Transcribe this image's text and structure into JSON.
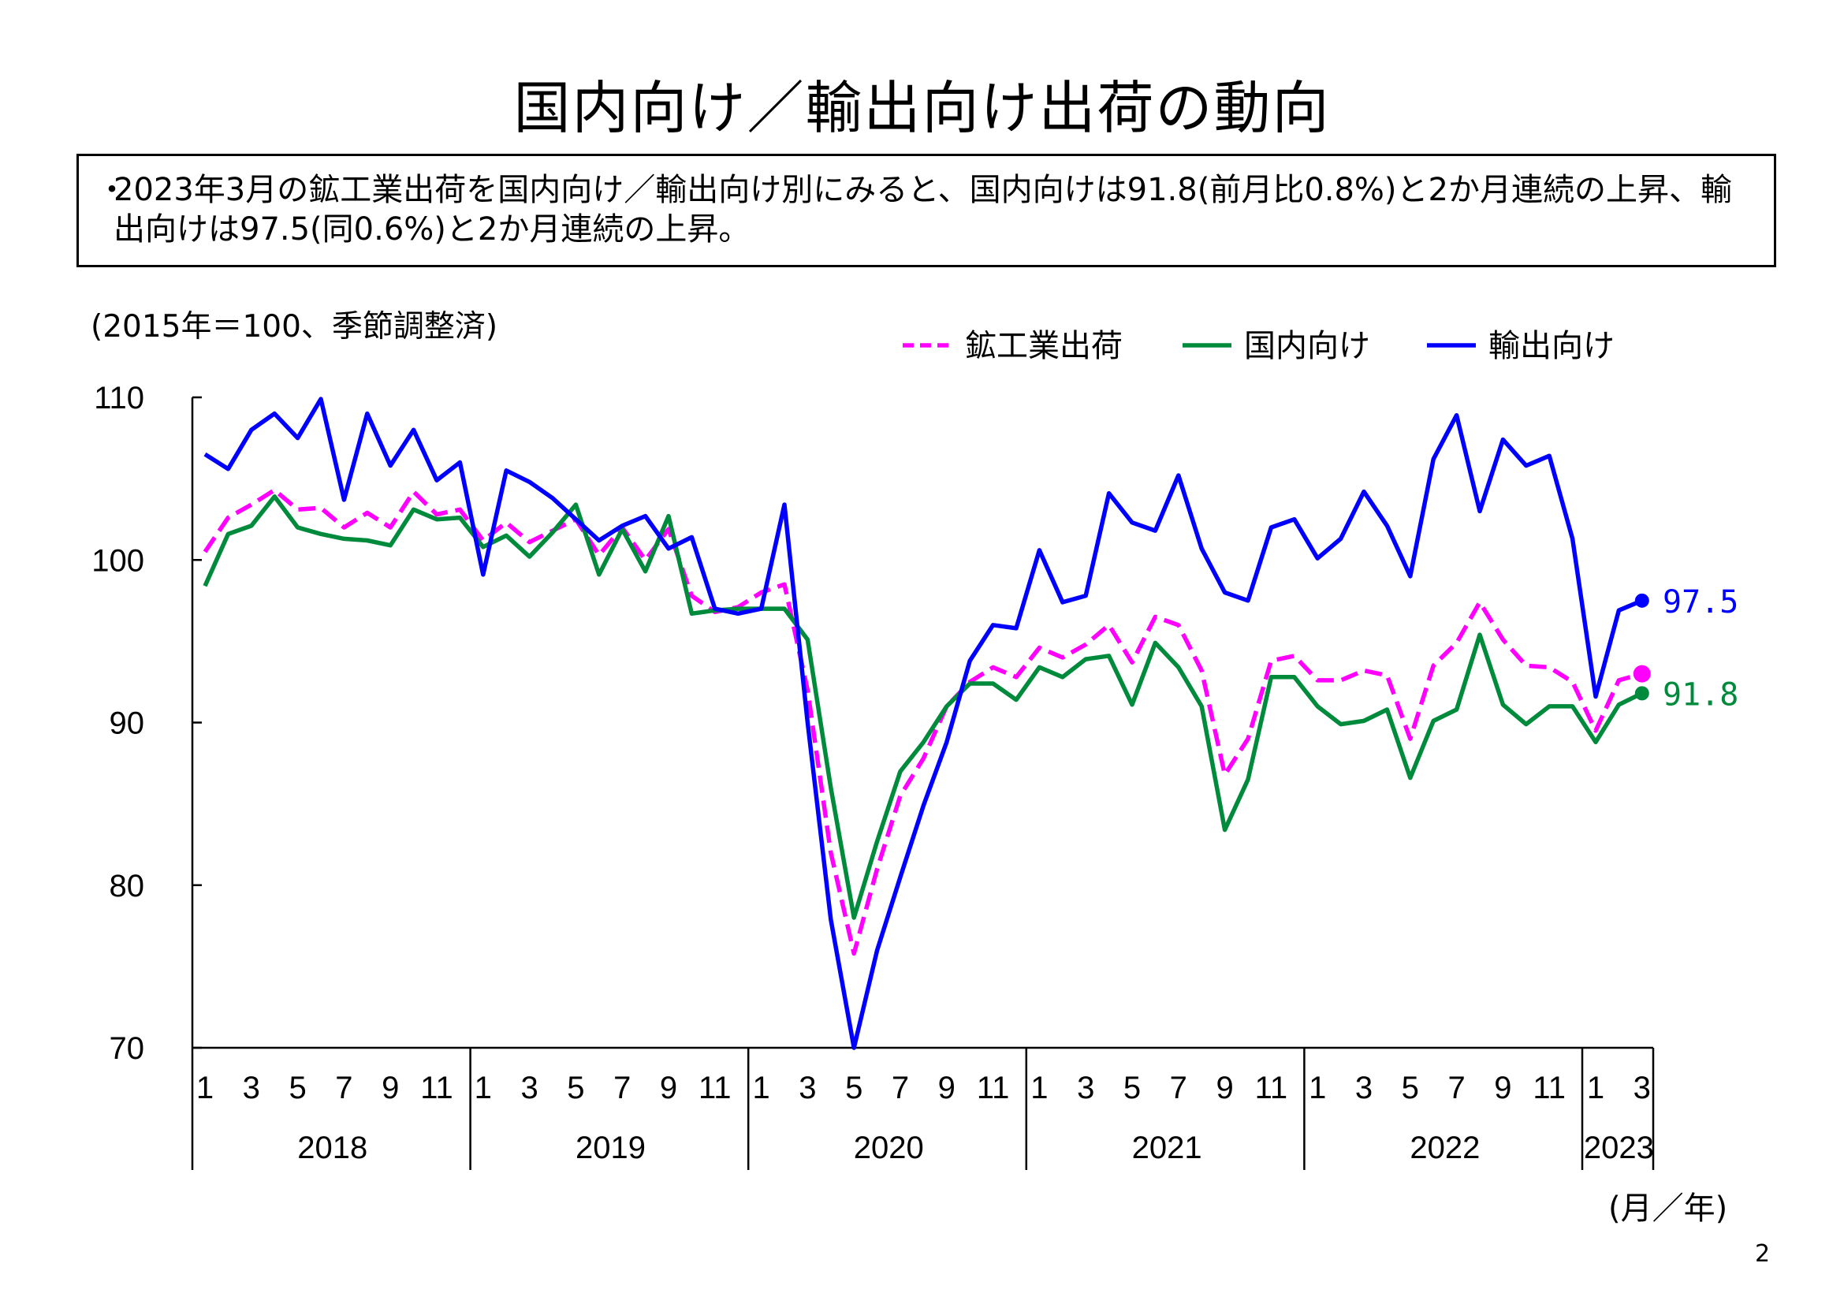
{
  "title": "国内向け／輸出向け出荷の動向",
  "summary": {
    "bullet": "・",
    "text": "2023年3月の鉱工業出荷を国内向け／輸出向け別にみると、国内向けは91.8(前月比0.8%)と2か月連続の上昇、輸出向けは97.5(同0.6%)と2か月連続の上昇。"
  },
  "unit_note": "(2015年＝100、季節調整済)",
  "axis_unit": "(月／年)",
  "page_number": "2",
  "colors": {
    "mining_industry": "#ff00ff",
    "domestic": "#008a3c",
    "export": "#0000ff"
  },
  "chart_data": {
    "type": "line",
    "x": [
      "2018-01",
      "2018-02",
      "2018-03",
      "2018-04",
      "2018-05",
      "2018-06",
      "2018-07",
      "2018-08",
      "2018-09",
      "2018-10",
      "2018-11",
      "2018-12",
      "2019-01",
      "2019-02",
      "2019-03",
      "2019-04",
      "2019-05",
      "2019-06",
      "2019-07",
      "2019-08",
      "2019-09",
      "2019-10",
      "2019-11",
      "2019-12",
      "2020-01",
      "2020-02",
      "2020-03",
      "2020-04",
      "2020-05",
      "2020-06",
      "2020-07",
      "2020-08",
      "2020-09",
      "2020-10",
      "2020-11",
      "2020-12",
      "2021-01",
      "2021-02",
      "2021-03",
      "2021-04",
      "2021-05",
      "2021-06",
      "2021-07",
      "2021-08",
      "2021-09",
      "2021-10",
      "2021-11",
      "2021-12",
      "2022-01",
      "2022-02",
      "2022-03",
      "2022-04",
      "2022-05",
      "2022-06",
      "2022-07",
      "2022-08",
      "2022-09",
      "2022-10",
      "2022-11",
      "2022-12",
      "2023-01",
      "2023-02",
      "2023-03"
    ],
    "month_ticks": [
      "1",
      "3",
      "5",
      "7",
      "9",
      "11"
    ],
    "last_year_ticks": [
      "1",
      "3"
    ],
    "years": [
      "2018",
      "2019",
      "2020",
      "2021",
      "2022",
      "2023"
    ],
    "ylim": [
      70,
      110
    ],
    "yticks": [
      "70",
      "80",
      "90",
      "100",
      "110"
    ],
    "series": [
      {
        "name": "鉱工業出荷",
        "style": "dashed",
        "color": "#ff00ff",
        "values": [
          100.5,
          102.6,
          103.4,
          104.3,
          103.1,
          103.2,
          102.0,
          102.9,
          102.0,
          104.2,
          102.8,
          103.1,
          101.2,
          102.3,
          101.1,
          101.8,
          102.5,
          100.3,
          102.0,
          100.0,
          101.9,
          97.8,
          96.8,
          97.1,
          98.0,
          98.5,
          92.0,
          82.0,
          75.8,
          81.0,
          85.5,
          87.8,
          91.0,
          92.5,
          93.4,
          92.8,
          94.6,
          94.0,
          94.8,
          96.0,
          93.7,
          96.5,
          96.0,
          93.2,
          86.8,
          89.0,
          93.8,
          94.1,
          92.6,
          92.6,
          93.2,
          92.9,
          89.0,
          93.5,
          94.9,
          97.4,
          95.1,
          93.5,
          93.4,
          92.5,
          89.5,
          92.6,
          93.0
        ]
      },
      {
        "name": "国内向け",
        "style": "solid",
        "color": "#008a3c",
        "values": [
          98.4,
          101.6,
          102.1,
          103.9,
          102.0,
          101.6,
          101.3,
          101.2,
          100.9,
          103.1,
          102.5,
          102.6,
          100.8,
          101.5,
          100.2,
          101.7,
          103.4,
          99.1,
          101.9,
          99.3,
          102.7,
          96.7,
          96.9,
          97.0,
          97.0,
          97.0,
          95.1,
          86.0,
          78.0,
          82.7,
          87.0,
          88.8,
          91.0,
          92.4,
          92.4,
          91.4,
          93.4,
          92.8,
          93.9,
          94.1,
          91.1,
          94.9,
          93.4,
          91.0,
          83.4,
          86.5,
          92.8,
          92.8,
          91.0,
          89.9,
          90.1,
          90.8,
          86.6,
          90.1,
          90.8,
          95.4,
          91.1,
          89.9,
          91.0,
          91.0,
          88.8,
          91.1,
          91.8
        ]
      },
      {
        "name": "輸出向け",
        "style": "solid",
        "color": "#0000ff",
        "values": [
          106.5,
          105.6,
          108.0,
          109.0,
          107.5,
          109.9,
          103.7,
          109.0,
          105.8,
          108.0,
          104.9,
          106.0,
          99.1,
          105.5,
          104.8,
          103.8,
          102.5,
          101.2,
          102.1,
          102.7,
          100.7,
          101.4,
          97.0,
          96.7,
          97.0,
          103.4,
          90.0,
          77.9,
          70.0,
          76.0,
          80.5,
          84.9,
          88.8,
          93.8,
          96.0,
          95.8,
          100.6,
          97.4,
          97.8,
          104.1,
          102.3,
          101.8,
          105.2,
          100.7,
          98.0,
          97.5,
          102.0,
          102.5,
          100.1,
          101.3,
          104.2,
          102.1,
          99.0,
          106.2,
          108.9,
          103.0,
          107.4,
          105.8,
          106.4,
          101.3,
          91.6,
          96.9,
          97.5
        ]
      }
    ],
    "end_labels": [
      {
        "series": "輸出向け",
        "text": "97.5"
      },
      {
        "series": "国内向け",
        "text": "91.8"
      }
    ]
  }
}
